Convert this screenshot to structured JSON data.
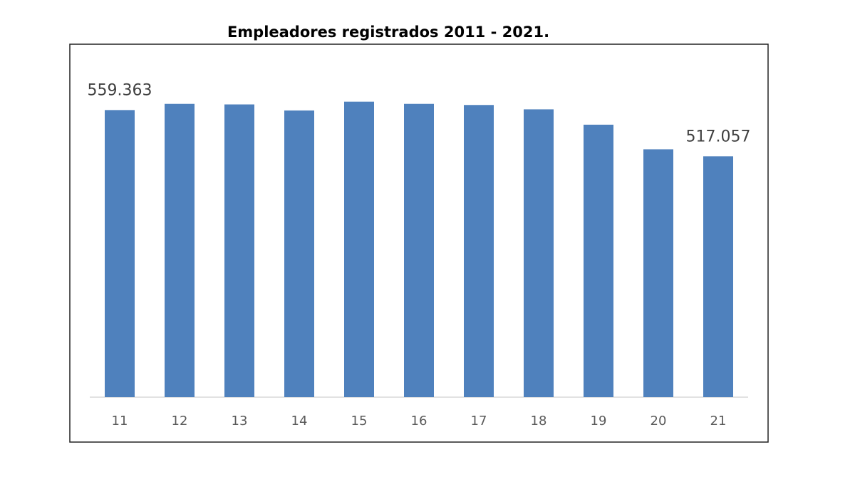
{
  "chart_data": {
    "type": "bar",
    "title": "Empleadores registrados 2011 - 2021.",
    "categories": [
      "11",
      "12",
      "13",
      "14",
      "15",
      "16",
      "17",
      "18",
      "19",
      "20",
      "21"
    ],
    "values": [
      559363,
      565000,
      564500,
      559000,
      567000,
      565000,
      564000,
      560000,
      546000,
      523500,
      517057
    ],
    "value_labels": [
      "559.363",
      null,
      null,
      null,
      null,
      null,
      null,
      null,
      null,
      null,
      "517.057"
    ],
    "color": "#4f81bd",
    "ylim": [
      297000,
      600000
    ]
  }
}
